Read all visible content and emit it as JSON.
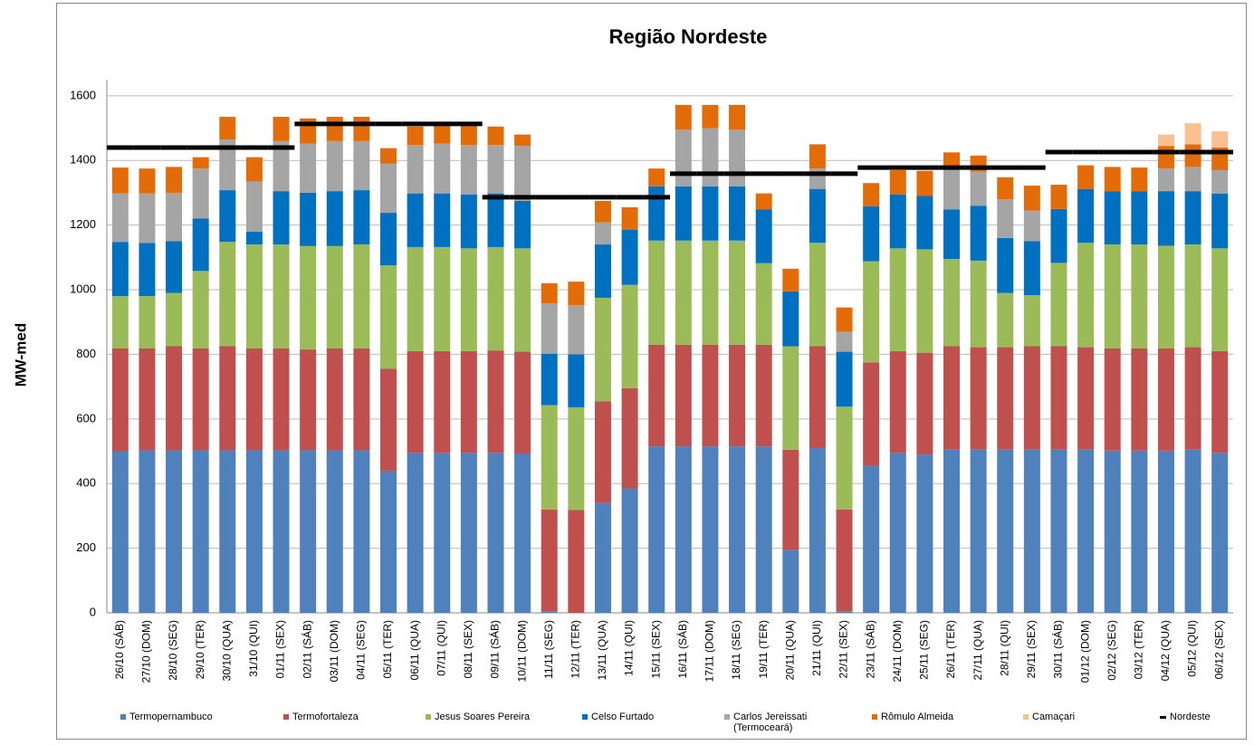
{
  "chart_data": {
    "type": "stacked_bar",
    "title": "Região Nordeste",
    "y_label": "MW-med",
    "categories": [
      "26/10 (SÁB)",
      "27/10 (DOM)",
      "28/10 (SEG)",
      "29/10 (TER)",
      "30/10 (QUA)",
      "31/10 (QUI)",
      "01/11 (SEX)",
      "02/11 (SÁB)",
      "03/11 (DOM)",
      "04/11 (SEG)",
      "05/11 (TER)",
      "06/11 (QUA)",
      "07/11 (QUI)",
      "08/11 (SEX)",
      "09/11 (SÁB)",
      "10/11 (DOM)",
      "11/11 (SEG)",
      "12/11 (TER)",
      "13/11 (QUA)",
      "14/11 (QUI)",
      "15/11 (SEX)",
      "16/11 (SÁB)",
      "17/11 (DOM)",
      "18/11 (SEG)",
      "19/11 (TER)",
      "20/11 (QUA)",
      "21/11 (QUI)",
      "22/11 (SEX)",
      "23/11 (SÁB)",
      "24/11 (DOM)",
      "25/11 (SEG)",
      "26/11 (TER)",
      "27/11 (QUA)",
      "28/11 (QUI)",
      "29/11 (SEX)",
      "30/11 (SÁB)",
      "01/12 (DOM)",
      "02/12 (SEG)",
      "03/12 (TER)",
      "04/12 (QUA)",
      "05/12 (QUI)",
      "06/12 (SEX)"
    ],
    "series": [
      {
        "name": "Termopernambuco",
        "color": "#4f81bd",
        "values": [
          500,
          503,
          503,
          503,
          503,
          503,
          503,
          503,
          503,
          503,
          440,
          495,
          495,
          495,
          495,
          493,
          5,
          0,
          340,
          385,
          515,
          515,
          515,
          515,
          515,
          195,
          510,
          5,
          455,
          495,
          490,
          505,
          505,
          505,
          505,
          505,
          505,
          502,
          502,
          502,
          505,
          495
        ]
      },
      {
        "name": "Termofortaleza",
        "color": "#c0504d",
        "values": [
          318,
          315,
          322,
          315,
          322,
          315,
          315,
          312,
          315,
          315,
          315,
          315,
          315,
          315,
          317,
          315,
          315,
          318,
          315,
          310,
          315,
          315,
          315,
          315,
          315,
          310,
          315,
          315,
          320,
          315,
          315,
          320,
          317,
          317,
          320,
          320,
          317,
          316,
          316,
          316,
          317,
          315
        ]
      },
      {
        "name": "Jesus Soares Pereira",
        "color": "#9bbb59",
        "values": [
          162,
          162,
          165,
          240,
          323,
          322,
          322,
          320,
          317,
          322,
          320,
          322,
          322,
          318,
          320,
          320,
          323,
          318,
          320,
          320,
          322,
          322,
          322,
          322,
          252,
          320,
          320,
          318,
          313,
          318,
          320,
          270,
          268,
          168,
          158,
          258,
          323,
          322,
          322,
          318,
          318,
          318
        ]
      },
      {
        "name": "Celso Furtado",
        "color": "#0070c0",
        "values": [
          168,
          165,
          160,
          162,
          160,
          40,
          165,
          165,
          170,
          168,
          163,
          166,
          166,
          167,
          166,
          147,
          159,
          164,
          165,
          170,
          168,
          168,
          168,
          168,
          166,
          170,
          167,
          170,
          170,
          167,
          165,
          153,
          170,
          170,
          167,
          167,
          167,
          165,
          165,
          169,
          165,
          169
        ]
      },
      {
        "name": "Carlos Jereissati (Termoceará)",
        "color": "#a5a5a5",
        "values": [
          150,
          153,
          150,
          155,
          157,
          155,
          155,
          152,
          155,
          152,
          152,
          150,
          154,
          153,
          150,
          170,
          156,
          152,
          68,
          0,
          0,
          175,
          180,
          175,
          0,
          0,
          63,
          62,
          0,
          0,
          0,
          130,
          105,
          120,
          95,
          0,
          0,
          0,
          0,
          70,
          75,
          73
        ]
      },
      {
        "name": "Rômulo Almeida",
        "color": "#e36c09",
        "values": [
          80,
          77,
          80,
          35,
          70,
          75,
          75,
          78,
          75,
          75,
          48,
          57,
          58,
          62,
          57,
          35,
          62,
          73,
          67,
          70,
          55,
          77,
          72,
          77,
          50,
          70,
          75,
          75,
          72,
          75,
          78,
          47,
          50,
          68,
          77,
          75,
          73,
          75,
          73,
          70,
          70,
          70
        ]
      },
      {
        "name": "Camaçari",
        "color": "#fac090",
        "values": [
          0,
          0,
          0,
          0,
          0,
          0,
          0,
          0,
          0,
          0,
          0,
          0,
          0,
          0,
          0,
          0,
          0,
          0,
          0,
          0,
          0,
          0,
          0,
          0,
          0,
          0,
          0,
          0,
          0,
          0,
          0,
          0,
          0,
          0,
          0,
          0,
          0,
          0,
          0,
          35,
          65,
          50
        ]
      }
    ],
    "line_series": {
      "name": "Nordeste",
      "color": "#000000",
      "values": [
        1440,
        1440,
        1440,
        1440,
        1440,
        1440,
        1440,
        1513,
        1513,
        1513,
        1513,
        1513,
        1513,
        1513,
        1286,
        1286,
        1286,
        1286,
        1286,
        1286,
        1286,
        1359,
        1359,
        1359,
        1359,
        1359,
        1359,
        1359,
        1378,
        1378,
        1378,
        1378,
        1378,
        1378,
        1378,
        1426,
        1426,
        1426,
        1426,
        1426,
        1426,
        1426
      ]
    },
    "ylim": [
      0,
      1650
    ],
    "yticks": [
      0,
      200,
      400,
      600,
      800,
      1000,
      1200,
      1400,
      1600
    ],
    "grid": true
  }
}
